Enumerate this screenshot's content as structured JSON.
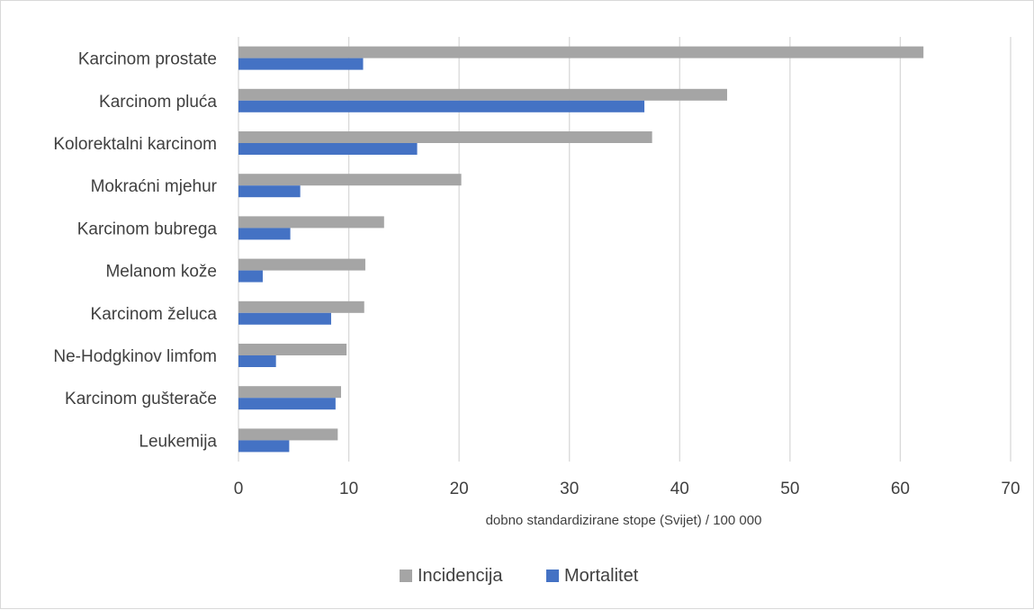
{
  "chart_data": {
    "type": "bar",
    "orientation": "horizontal",
    "categories": [
      "Karcinom prostate",
      "Karcinom pluća",
      "Kolorektalni karcinom",
      "Mokraćni mjehur",
      "Karcinom bubrega",
      "Melanom kože",
      "Karcinom želuca",
      "Ne-Hodgkinov limfom",
      "Karcinom gušterače",
      "Leukemija"
    ],
    "series": [
      {
        "name": "Incidencija",
        "color": "#a5a5a5",
        "values": [
          62.1,
          44.3,
          37.5,
          20.2,
          13.2,
          11.5,
          11.4,
          9.8,
          9.3,
          9.0
        ]
      },
      {
        "name": "Mortalitet",
        "color": "#4472c4",
        "values": [
          11.3,
          36.8,
          16.2,
          5.6,
          4.7,
          2.2,
          8.4,
          3.4,
          8.8,
          4.6
        ]
      }
    ],
    "xlabel": "dobno standardizirane stope (Svijet) / 100 000",
    "xlim": [
      0,
      70
    ],
    "xticks": [
      "0",
      "10",
      "20",
      "30",
      "40",
      "50",
      "60",
      "70"
    ],
    "grid": "vertical",
    "legend_position": "bottom"
  }
}
